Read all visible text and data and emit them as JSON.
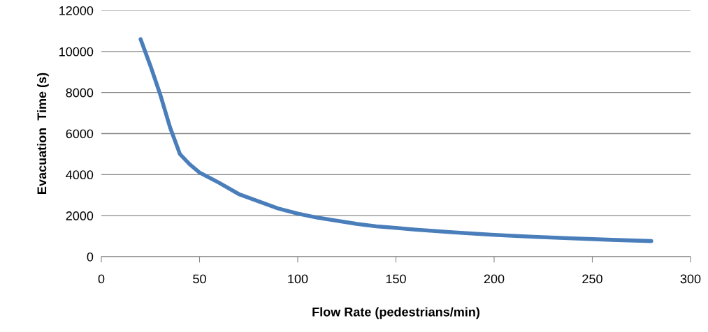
{
  "chart_data": {
    "type": "line",
    "xlabel": "Flow Rate (pedestrians/min)",
    "ylabel": "Evacuation  Time (s)",
    "x": [
      20,
      25,
      30,
      35,
      40,
      45,
      50,
      60,
      70,
      80,
      90,
      100,
      110,
      120,
      130,
      140,
      150,
      160,
      170,
      180,
      190,
      200,
      220,
      240,
      260,
      280
    ],
    "series": [
      {
        "color": "#4a7ebb",
        "values": [
          10600,
          9300,
          7900,
          6300,
          5000,
          4500,
          4100,
          3600,
          3050,
          2700,
          2350,
          2100,
          1900,
          1750,
          1600,
          1480,
          1400,
          1320,
          1250,
          1180,
          1120,
          1060,
          970,
          890,
          820,
          760
        ]
      }
    ],
    "xlim": [
      0,
      300
    ],
    "xticks": [
      0,
      50,
      100,
      150,
      200,
      250,
      300
    ],
    "ylim": [
      0,
      12000
    ],
    "yticks": [
      0,
      2000,
      4000,
      6000,
      8000,
      10000,
      12000
    ],
    "grid": "y",
    "legend": false,
    "marker": "none",
    "line_style": "solid"
  }
}
